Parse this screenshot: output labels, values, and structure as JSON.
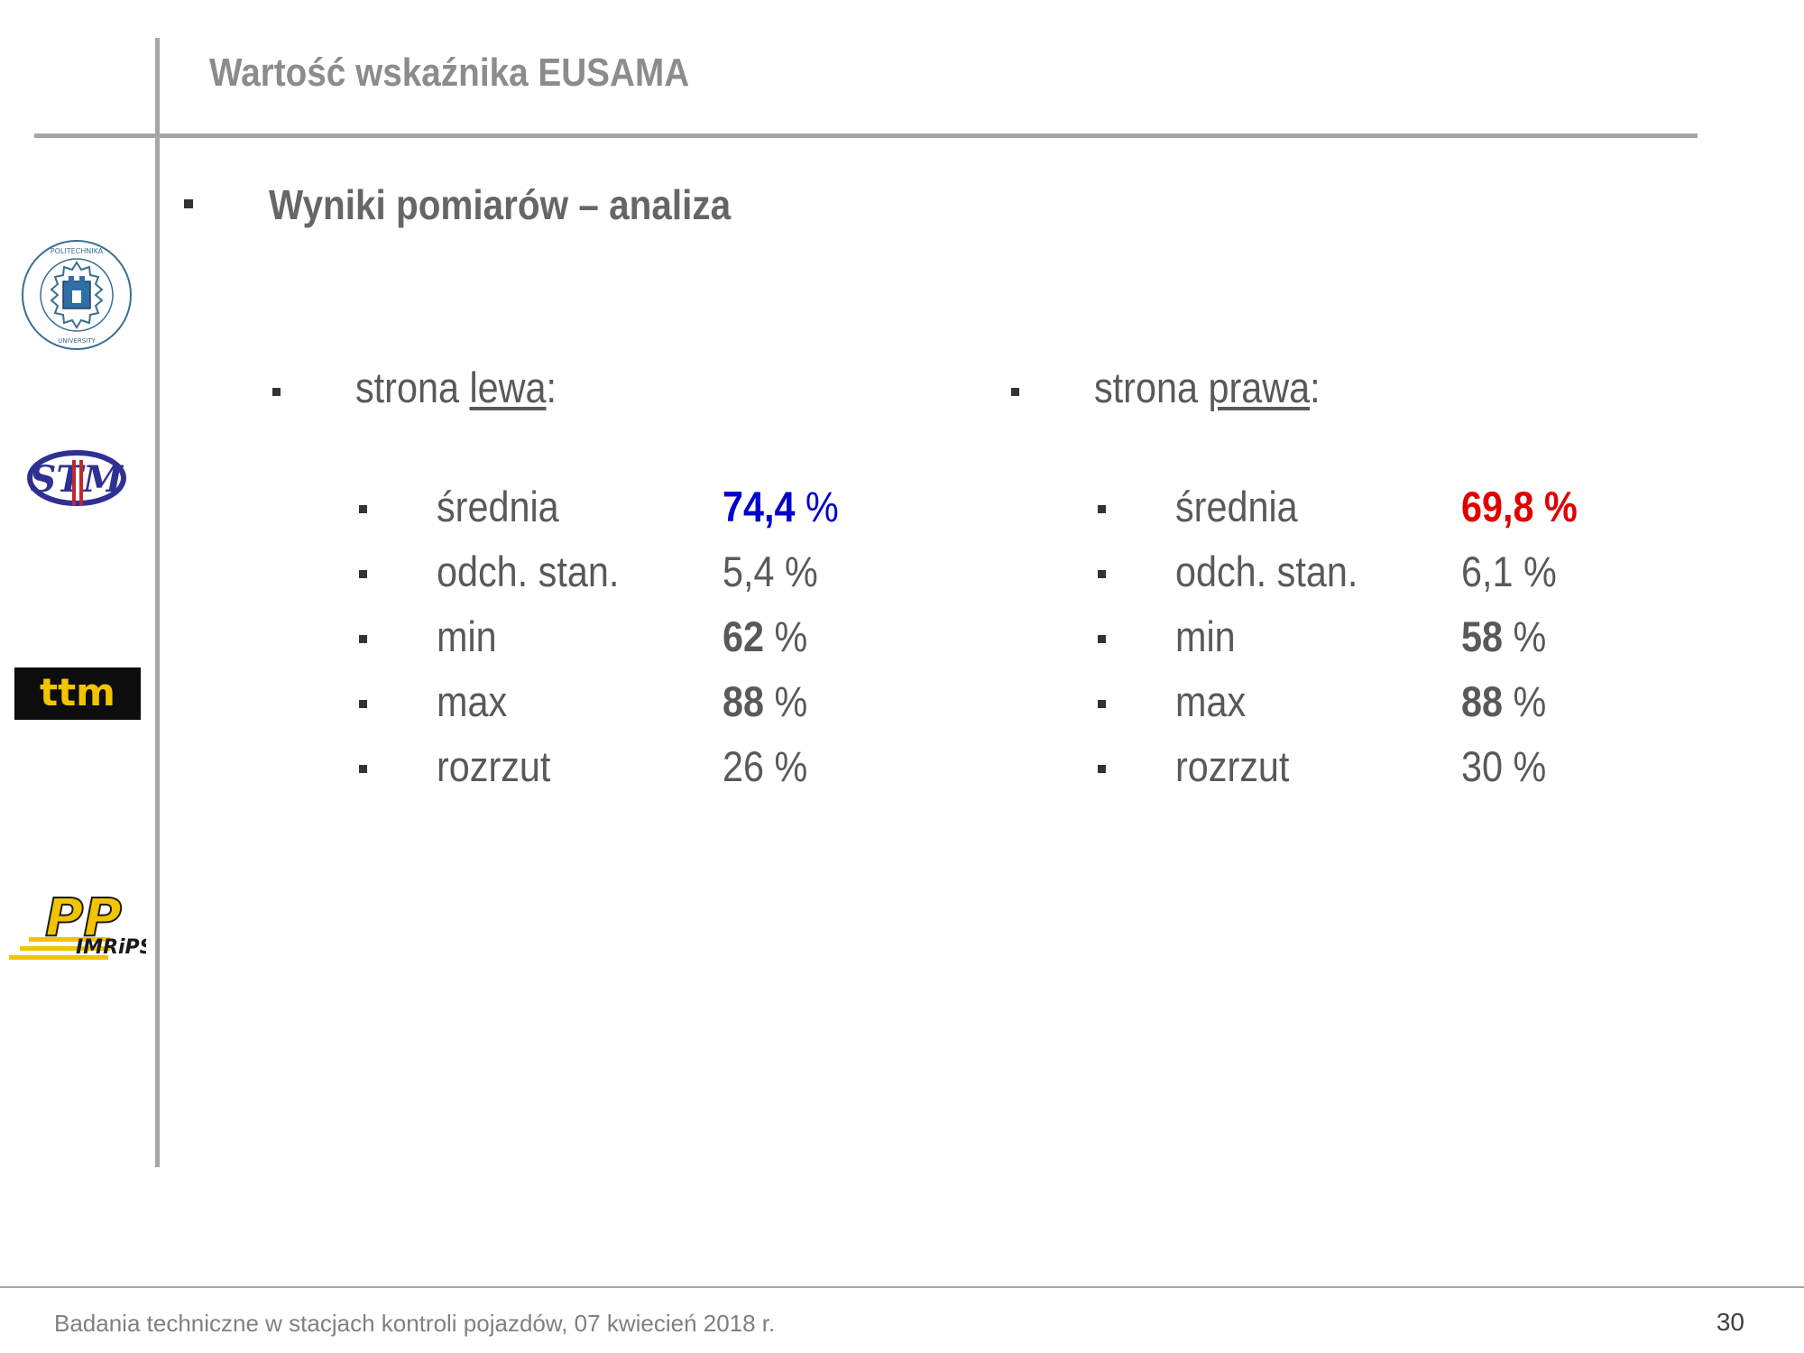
{
  "slide": {
    "title": "Wartość wskaźnika EUSAMA",
    "subtitle": "Wyniki pomiarów – analiza"
  },
  "left": {
    "heading_prefix": "strona ",
    "heading_word": "lewa",
    "heading_suffix": ":",
    "rows": [
      {
        "label": "średnia",
        "value": "74,4",
        "unit": " %",
        "color": "#0000cc"
      },
      {
        "label": "odch. stan.",
        "value": "5,4",
        "unit": " %"
      },
      {
        "label": "min",
        "value": "62",
        "unit": " %"
      },
      {
        "label": "max",
        "value": "88",
        "unit": " %"
      },
      {
        "label": "rozrzut",
        "value": "26",
        "unit": " %"
      }
    ]
  },
  "right": {
    "heading_prefix": "strona ",
    "heading_word": "prawa",
    "heading_suffix": ":",
    "rows": [
      {
        "label": "średnia",
        "value": "69,8",
        "unit": " %",
        "color": "#e00000"
      },
      {
        "label": "odch. stan.",
        "value": "6,1",
        "unit": " %"
      },
      {
        "label": "min",
        "value": "58",
        "unit": " %"
      },
      {
        "label": "max",
        "value": "88",
        "unit": " %"
      },
      {
        "label": "rozrzut",
        "value": "30",
        "unit": " %"
      }
    ]
  },
  "logos": {
    "university": "POLITECHNIKA POZNAŃSKA POZNAN UNIVERSITY OF TECHNOLOGY",
    "stm": "STM",
    "ttm": "ttm",
    "pimrips": "PIMRiPS"
  },
  "footer": {
    "text": "Badania techniczne w stacjach kontroli pojazdów, 07 kwiecień 2018 r.",
    "page_number": "30"
  }
}
